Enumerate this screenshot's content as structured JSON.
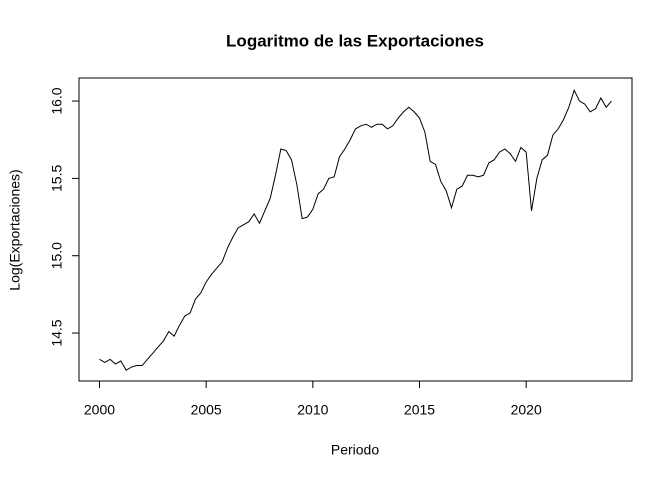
{
  "chart_data": {
    "type": "line",
    "title": "Logaritmo de las Exportaciones",
    "xlabel": "Periodo",
    "ylabel": "Log(Exportaciones)",
    "color": "#000000",
    "x": [
      2000,
      2000.25,
      2000.5,
      2000.75,
      2001,
      2001.25,
      2001.5,
      2001.75,
      2002,
      2002.25,
      2002.5,
      2002.75,
      2003,
      2003.25,
      2003.5,
      2003.75,
      2004,
      2004.25,
      2004.5,
      2004.75,
      2005,
      2005.25,
      2005.5,
      2005.75,
      2006,
      2006.25,
      2006.5,
      2006.75,
      2007,
      2007.25,
      2007.5,
      2007.75,
      2008,
      2008.25,
      2008.5,
      2008.75,
      2009,
      2009.25,
      2009.5,
      2009.75,
      2010,
      2010.25,
      2010.5,
      2010.75,
      2011,
      2011.25,
      2011.5,
      2011.75,
      2012,
      2012.25,
      2012.5,
      2012.75,
      2013,
      2013.25,
      2013.5,
      2013.75,
      2014,
      2014.25,
      2014.5,
      2014.75,
      2015,
      2015.25,
      2015.5,
      2015.75,
      2016,
      2016.25,
      2016.5,
      2016.75,
      2017,
      2017.25,
      2017.5,
      2017.75,
      2018,
      2018.25,
      2018.5,
      2018.75,
      2019,
      2019.25,
      2019.5,
      2019.75,
      2020,
      2020.25,
      2020.5,
      2020.75,
      2021,
      2021.25,
      2021.5,
      2021.75,
      2022,
      2022.25,
      2022.5,
      2022.75,
      2023,
      2023.25,
      2023.5,
      2023.75,
      2024
    ],
    "values": [
      14.33,
      14.31,
      14.33,
      14.3,
      14.32,
      14.26,
      14.28,
      14.29,
      14.29,
      14.33,
      14.37,
      14.41,
      14.45,
      14.51,
      14.48,
      14.55,
      14.61,
      14.63,
      14.72,
      14.76,
      14.83,
      14.88,
      14.92,
      14.96,
      15.05,
      15.12,
      15.18,
      15.2,
      15.22,
      15.27,
      15.21,
      15.29,
      15.37,
      15.52,
      15.69,
      15.68,
      15.62,
      15.46,
      15.24,
      15.25,
      15.3,
      15.4,
      15.43,
      15.5,
      15.51,
      15.64,
      15.69,
      15.75,
      15.82,
      15.84,
      15.85,
      15.83,
      15.85,
      15.85,
      15.82,
      15.84,
      15.89,
      15.93,
      15.96,
      15.93,
      15.89,
      15.8,
      15.61,
      15.59,
      15.48,
      15.42,
      15.31,
      15.43,
      15.45,
      15.52,
      15.52,
      15.51,
      15.52,
      15.6,
      15.62,
      15.67,
      15.69,
      15.66,
      15.61,
      15.7,
      15.67,
      15.29,
      15.5,
      15.62,
      15.65,
      15.78,
      15.82,
      15.88,
      15.96,
      16.07,
      16.0,
      15.98,
      15.93,
      15.95,
      16.02,
      15.96,
      16.0
    ],
    "xlim": [
      1999.04,
      2024.96
    ],
    "xticks": [
      2000,
      2005,
      2010,
      2015,
      2020
    ],
    "ylim": [
      14.19,
      16.149
    ],
    "yticks": [
      14.5,
      {
        "value": 15.0,
        "label": "15.0"
      },
      15.5,
      {
        "value": 16.0,
        "label": "16.0"
      }
    ]
  }
}
